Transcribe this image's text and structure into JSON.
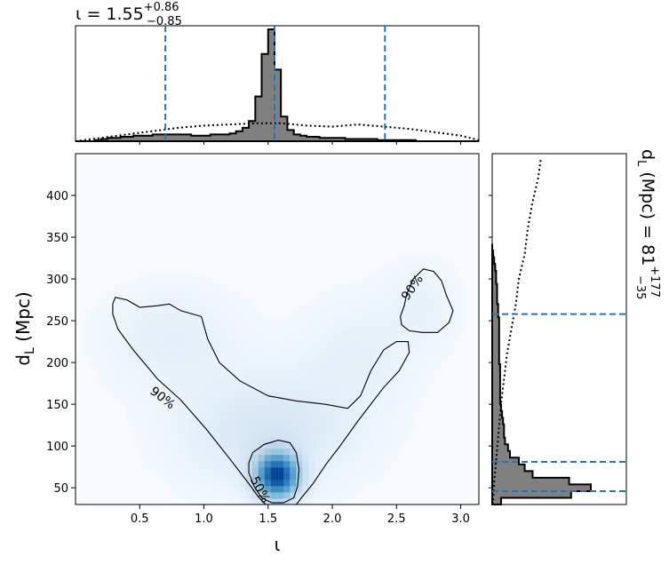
{
  "chart_data": [
    {
      "type": "heatmap",
      "panel": "joint",
      "xlabel": "ι",
      "ylabel": "d_L (Mpc)",
      "xlim": [
        0.0,
        3.1416
      ],
      "ylim": [
        30,
        450
      ],
      "xticks": [
        0.5,
        1.0,
        1.5,
        2.0,
        2.5,
        3.0
      ],
      "xtick_labels": [
        "0.5",
        "1.0",
        "1.5",
        "2.0",
        "2.5",
        "3.0"
      ],
      "yticks": [
        50,
        100,
        150,
        200,
        250,
        300,
        350,
        400
      ],
      "ytick_labels": [
        "50",
        "100",
        "150",
        "200",
        "250",
        "300",
        "350",
        "400"
      ],
      "colormap": "Blues",
      "density_peak": {
        "iota": 1.57,
        "dL": 65
      },
      "contours": [
        {
          "label": "90%",
          "paths": [
            [
              [
                1.48,
                30
              ],
              [
                1.42,
                40
              ],
              [
                1.35,
                55
              ],
              [
                1.2,
                85
              ],
              [
                1.02,
                120
              ],
              [
                0.82,
                155
              ],
              [
                0.64,
                180
              ],
              [
                0.45,
                215
              ],
              [
                0.33,
                240
              ],
              [
                0.29,
                258
              ],
              [
                0.29,
                270
              ],
              [
                0.31,
                278
              ],
              [
                0.4,
                275
              ],
              [
                0.5,
                266
              ],
              [
                0.64,
                268
              ],
              [
                0.73,
                270
              ],
              [
                0.82,
                262
              ],
              [
                0.98,
                255
              ],
              [
                1.03,
                228
              ],
              [
                1.12,
                200
              ],
              [
                1.28,
                178
              ],
              [
                1.5,
                160
              ],
              [
                1.72,
                154
              ],
              [
                1.94,
                150
              ],
              [
                2.12,
                145
              ],
              [
                2.22,
                160
              ],
              [
                2.3,
                190
              ],
              [
                2.4,
                215
              ],
              [
                2.5,
                225
              ],
              [
                2.59,
                225
              ],
              [
                2.6,
                212
              ],
              [
                2.52,
                190
              ],
              [
                2.4,
                170
              ],
              [
                2.2,
                130
              ],
              [
                2.06,
                100
              ],
              [
                1.95,
                78
              ],
              [
                1.85,
                55
              ],
              [
                1.77,
                40
              ],
              [
                1.72,
                30
              ]
            ],
            [
              [
                2.53,
                255
              ],
              [
                2.54,
                245
              ],
              [
                2.6,
                238
              ],
              [
                2.7,
                236
              ],
              [
                2.82,
                236
              ],
              [
                2.91,
                248
              ],
              [
                2.94,
                262
              ],
              [
                2.89,
                280
              ],
              [
                2.85,
                298
              ],
              [
                2.79,
                309
              ],
              [
                2.71,
                312
              ],
              [
                2.63,
                300
              ],
              [
                2.58,
                282
              ],
              [
                2.56,
                268
              ],
              [
                2.53,
                255
              ]
            ]
          ]
        },
        {
          "label": "50%",
          "paths": [
            [
              [
                1.35,
                80
              ],
              [
                1.38,
                92
              ],
              [
                1.47,
                102
              ],
              [
                1.58,
                107
              ],
              [
                1.67,
                104
              ],
              [
                1.72,
                92
              ],
              [
                1.74,
                72
              ],
              [
                1.73,
                52
              ],
              [
                1.7,
                38
              ],
              [
                1.62,
                32
              ],
              [
                1.53,
                32
              ],
              [
                1.45,
                38
              ],
              [
                1.39,
                52
              ],
              [
                1.35,
                68
              ],
              [
                1.35,
                80
              ]
            ]
          ]
        }
      ]
    },
    {
      "type": "area",
      "panel": "top-marginal",
      "title": "ι = 1.55",
      "title_sup": "+0.86",
      "title_sub": "−0.85",
      "xlim": [
        0.0,
        3.1416
      ],
      "bin_width": 0.05,
      "hist_x_start": 0.0,
      "hist_values": [
        0,
        0,
        0,
        1,
        2,
        3,
        3,
        4,
        4,
        5,
        5,
        5,
        6,
        6,
        6,
        6,
        6,
        6,
        5,
        5,
        5,
        6,
        6,
        6,
        7,
        9,
        12,
        18,
        40,
        78,
        100,
        64,
        22,
        10,
        6,
        5,
        4,
        4,
        3,
        3,
        3,
        3,
        2,
        2,
        2,
        2,
        2,
        1,
        1,
        1,
        1,
        1,
        1,
        0,
        0,
        0,
        0,
        0,
        0,
        0,
        0,
        0,
        0
      ],
      "prior_x": [
        0.0,
        0.2,
        0.4,
        0.6,
        0.8,
        1.0,
        1.2,
        1.4,
        1.6,
        1.8,
        2.0,
        2.2,
        2.4,
        2.6,
        2.8,
        3.0,
        3.14
      ],
      "prior_values": [
        0,
        3,
        6,
        9,
        12,
        14,
        15,
        16,
        16,
        14,
        13,
        15,
        13,
        11,
        8,
        5,
        1
      ],
      "median": 1.55,
      "lower": 0.7,
      "upper": 2.41
    },
    {
      "type": "area",
      "panel": "right-marginal",
      "title": "d_L (Mpc) = 81",
      "title_sup": "+177",
      "title_sub": "−35",
      "ylim": [
        30,
        450
      ],
      "bin_width": 8,
      "hist_y_start": 30,
      "hist_values": [
        9,
        80,
        100,
        78,
        41,
        33,
        27,
        18,
        16,
        13,
        12,
        12,
        11,
        10,
        9,
        8,
        8,
        8,
        8,
        8,
        8,
        7,
        7,
        7,
        7,
        7,
        7,
        7,
        6,
        6,
        5,
        5,
        5,
        4,
        4,
        3,
        2,
        1,
        0
      ],
      "prior_y": [
        30,
        60,
        90,
        120,
        150,
        180,
        210,
        240,
        270,
        300,
        330,
        360,
        390,
        420,
        445
      ],
      "prior_values": [
        0.4,
        1.5,
        3,
        4.5,
        6,
        8,
        10,
        13,
        16,
        18,
        22,
        24,
        27,
        31,
        33
      ],
      "median": 81,
      "lower": 46,
      "upper": 258
    }
  ]
}
